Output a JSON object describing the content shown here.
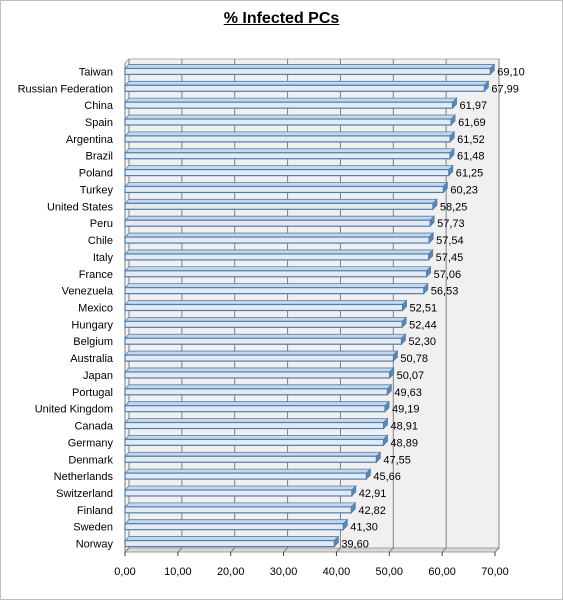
{
  "chart_data": {
    "type": "bar",
    "orientation": "horizontal",
    "title": "% Infected PCs",
    "xlabel": "",
    "ylabel": "",
    "categories": [
      "Taiwan",
      "Russian Federation",
      "China",
      "Spain",
      "Argentina",
      "Brazil",
      "Poland",
      "Turkey",
      "United States",
      "Peru",
      "Chile",
      "Italy",
      "France",
      "Venezuela",
      "Mexico",
      "Hungary",
      "Belgium",
      "Australia",
      "Japan",
      "Portugal",
      "United Kingdom",
      "Canada",
      "Germany",
      "Denmark",
      "Netherlands",
      "Switzerland",
      "Finland",
      "Sweden",
      "Norway"
    ],
    "values": [
      69.1,
      67.99,
      61.97,
      61.69,
      61.52,
      61.48,
      61.25,
      60.23,
      58.25,
      57.73,
      57.54,
      57.45,
      57.06,
      56.53,
      52.51,
      52.44,
      52.3,
      50.78,
      50.07,
      49.63,
      49.19,
      48.91,
      48.89,
      47.55,
      45.66,
      42.91,
      42.82,
      41.3,
      39.6
    ],
    "value_labels": [
      "69,10",
      "67,99",
      "61,97",
      "61,69",
      "61,52",
      "61,48",
      "61,25",
      "60,23",
      "58,25",
      "57,73",
      "57,54",
      "57,45",
      "57,06",
      "56,53",
      "52,51",
      "52,44",
      "52,30",
      "50,78",
      "50,07",
      "49,63",
      "49,19",
      "48,91",
      "48,89",
      "47,55",
      "45,66",
      "42,91",
      "42,82",
      "41,30",
      "39,60"
    ],
    "xlim": [
      0,
      70
    ],
    "x_ticks": [
      0,
      10,
      20,
      30,
      40,
      50,
      60,
      70
    ],
    "x_tick_labels": [
      "0,00",
      "10,00",
      "20,00",
      "30,00",
      "40,00",
      "50,00",
      "60,00",
      "70,00"
    ],
    "grid": "vertical",
    "legend": "none",
    "colors": {
      "bar_fill": "#e3eaf4",
      "bar_edge": "#4f7fb0",
      "plot_background": "#f0f0f0",
      "gridline": "#808080"
    }
  }
}
